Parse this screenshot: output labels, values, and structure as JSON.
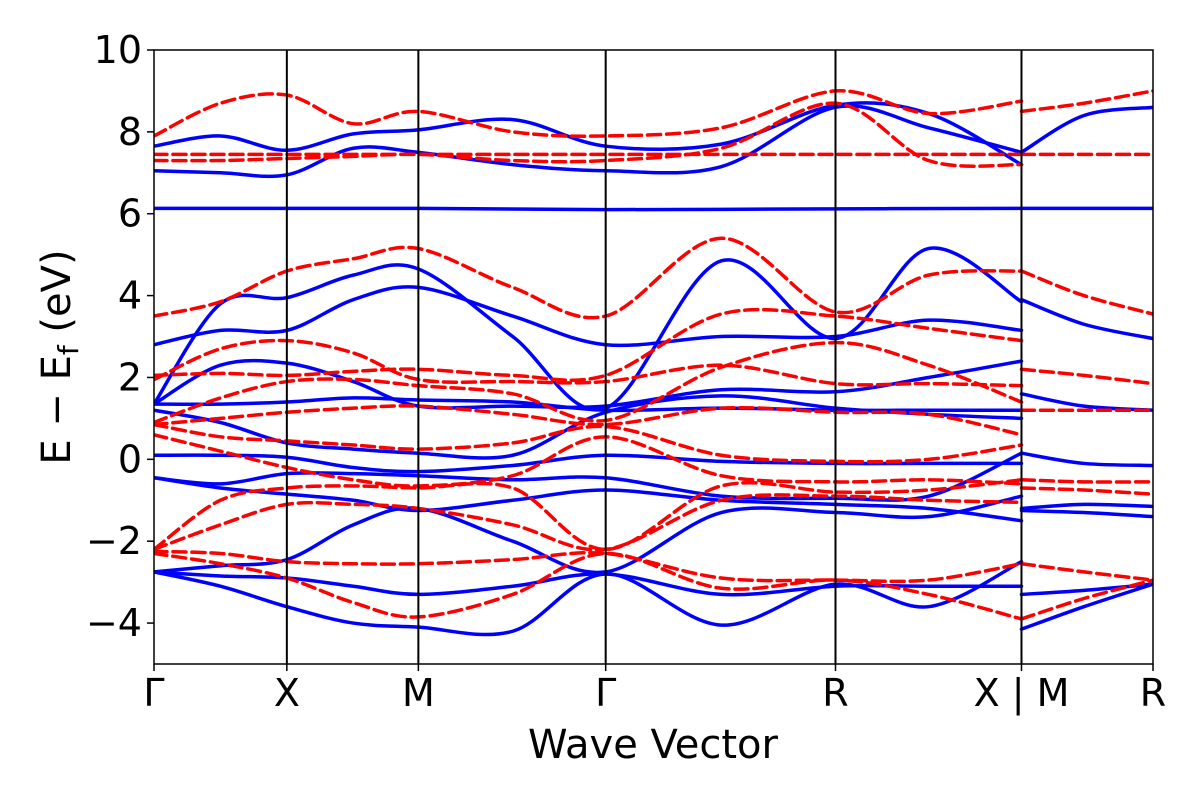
{
  "chart_data": {
    "type": "line",
    "title": "",
    "xlabel": "Wave Vector",
    "ylabel": "E − E_f (eV)",
    "ylabel_main": "E − E",
    "ylabel_sub": "f",
    "ylabel_tail": " (eV)",
    "ylim": [
      -5,
      10
    ],
    "yticks": [
      -4,
      -2,
      0,
      2,
      4,
      6,
      8,
      10
    ],
    "ytick_labels": [
      "−4",
      "−2",
      "0",
      "2",
      "4",
      "6",
      "8",
      "10"
    ],
    "xlim": [
      0,
      7.52
    ],
    "high_symmetry_points": [
      {
        "label": "Γ",
        "x": 0
      },
      {
        "label": "X",
        "x": 1.0
      },
      {
        "label": "M",
        "x": 1.99
      },
      {
        "label": "Γ",
        "x": 3.4
      },
      {
        "label": "R",
        "x": 5.13
      },
      {
        "label": "X | M",
        "x": 6.53
      },
      {
        "label": "R",
        "x": 7.52
      }
    ],
    "grid": false,
    "legend": false,
    "series": [
      {
        "style": "solid",
        "color": "#0000ff",
        "x": [
          0,
          1.0,
          1.99,
          3.4,
          5.13,
          6.53
        ],
        "y": [
          6.13,
          6.13,
          6.13,
          6.1,
          6.12,
          6.13
        ]
      },
      {
        "style": "solid",
        "color": "#0000ff",
        "x": [
          6.53,
          7.52
        ],
        "y": [
          6.13,
          6.13
        ]
      },
      {
        "style": "solid",
        "color": "#0000ff",
        "x": [
          0,
          0.5,
          1.0,
          1.5,
          1.99,
          2.7,
          3.4,
          4.27,
          5.13,
          5.83,
          6.53
        ],
        "y": [
          7.05,
          7.0,
          6.95,
          7.6,
          7.5,
          7.2,
          7.05,
          7.15,
          8.6,
          8.1,
          7.5
        ]
      },
      {
        "style": "solid",
        "color": "#0000ff",
        "x": [
          0,
          0.5,
          1.0,
          1.5,
          1.99,
          2.7,
          3.4,
          4.27,
          5.13,
          5.83,
          6.53
        ],
        "y": [
          7.65,
          7.9,
          7.55,
          7.95,
          8.05,
          8.3,
          7.65,
          7.7,
          8.65,
          8.45,
          7.2
        ]
      },
      {
        "style": "solid",
        "color": "#0000ff",
        "x": [
          0,
          0.5,
          1.0,
          1.5,
          1.99,
          2.7,
          3.4,
          4.27,
          5.13,
          5.83,
          6.53
        ],
        "y": [
          2.8,
          3.15,
          3.15,
          3.9,
          4.2,
          3.5,
          2.8,
          3.0,
          3.0,
          3.4,
          3.15
        ]
      },
      {
        "style": "solid",
        "color": "#0000ff",
        "x": [
          0,
          0.5,
          1.0,
          1.5,
          1.99,
          2.7,
          3.4,
          4.27,
          5.13,
          5.83,
          6.53
        ],
        "y": [
          1.35,
          3.8,
          3.95,
          4.5,
          4.65,
          3.0,
          1.25,
          4.85,
          2.95,
          5.15,
          3.85
        ]
      },
      {
        "style": "solid",
        "color": "#0000ff",
        "x": [
          0,
          0.5,
          1.0,
          1.5,
          1.99,
          2.7,
          3.4,
          4.27,
          5.13,
          5.83,
          6.53
        ],
        "y": [
          1.35,
          2.3,
          2.35,
          1.9,
          1.3,
          1.3,
          1.3,
          1.7,
          1.65,
          2.0,
          2.4
        ]
      },
      {
        "style": "solid",
        "color": "#0000ff",
        "x": [
          0,
          0.5,
          1.0,
          1.5,
          1.99,
          2.7,
          3.4,
          4.27,
          5.13,
          5.83,
          6.53
        ],
        "y": [
          1.35,
          1.35,
          1.4,
          1.5,
          1.45,
          1.4,
          1.2,
          1.25,
          1.2,
          1.2,
          1.2
        ]
      },
      {
        "style": "solid",
        "color": "#0000ff",
        "x": [
          0,
          0.5,
          1.0,
          1.5,
          1.99,
          2.7,
          3.4,
          4.27,
          5.13,
          5.83,
          6.53
        ],
        "y": [
          1.2,
          0.9,
          0.4,
          0.25,
          0.15,
          0.1,
          1.15,
          1.55,
          1.25,
          1.1,
          1.0
        ]
      },
      {
        "style": "solid",
        "color": "#0000ff",
        "x": [
          0,
          0.5,
          1.0,
          1.5,
          1.99,
          2.7,
          3.4,
          4.27,
          5.13,
          5.83,
          6.53
        ],
        "y": [
          0.1,
          0.1,
          0.05,
          -0.2,
          -0.3,
          -0.15,
          0.1,
          -0.05,
          -0.1,
          -0.1,
          -0.1
        ]
      },
      {
        "style": "solid",
        "color": "#0000ff",
        "x": [
          0,
          0.5,
          1.0,
          1.5,
          1.99,
          2.7,
          3.4,
          4.27,
          5.13,
          5.83,
          6.53
        ],
        "y": [
          -0.45,
          -0.6,
          -0.35,
          -0.35,
          -0.4,
          -0.5,
          -0.45,
          -0.9,
          -0.95,
          -0.9,
          0.15
        ]
      },
      {
        "style": "solid",
        "color": "#0000ff",
        "x": [
          0,
          0.5,
          1.0,
          1.5,
          1.99,
          2.7,
          3.4,
          4.27,
          5.13,
          5.83,
          6.53
        ],
        "y": [
          -0.45,
          -0.7,
          -0.85,
          -1.0,
          -1.25,
          -1.0,
          -0.75,
          -1.0,
          -1.1,
          -1.2,
          -1.5
        ]
      },
      {
        "style": "solid",
        "color": "#0000ff",
        "x": [
          0,
          0.5,
          1.0,
          1.5,
          1.99,
          2.7,
          3.4,
          4.27,
          5.13,
          5.83,
          6.53
        ],
        "y": [
          -2.75,
          -2.6,
          -2.45,
          -1.6,
          -1.2,
          -2.0,
          -2.75,
          -1.3,
          -1.3,
          -1.4,
          -0.9
        ]
      },
      {
        "style": "solid",
        "color": "#0000ff",
        "x": [
          0,
          0.5,
          1.0,
          1.5,
          1.99,
          2.7,
          3.4,
          4.27,
          5.13,
          5.83,
          6.53
        ],
        "y": [
          -2.75,
          -2.85,
          -2.9,
          -3.1,
          -3.3,
          -3.1,
          -2.8,
          -3.3,
          -3.1,
          -3.1,
          -3.1
        ]
      },
      {
        "style": "solid",
        "color": "#0000ff",
        "x": [
          0,
          0.5,
          1.0,
          1.5,
          1.99,
          2.7,
          3.4,
          4.27,
          5.13,
          5.83,
          6.53
        ],
        "y": [
          -2.75,
          -3.1,
          -3.6,
          -4.0,
          -4.1,
          -4.2,
          -2.8,
          -4.05,
          -3.05,
          -3.6,
          -2.5
        ]
      },
      {
        "style": "solid",
        "color": "#0000ff",
        "x": [
          6.53,
          7.0,
          7.52
        ],
        "y": [
          7.5,
          8.4,
          8.6
        ]
      },
      {
        "style": "solid",
        "color": "#0000ff",
        "x": [
          6.53,
          7.0,
          7.52
        ],
        "y": [
          3.9,
          3.3,
          2.95
        ]
      },
      {
        "style": "solid",
        "color": "#0000ff",
        "x": [
          6.53,
          7.0,
          7.52
        ],
        "y": [
          1.6,
          1.3,
          1.2
        ]
      },
      {
        "style": "solid",
        "color": "#0000ff",
        "x": [
          6.53,
          7.0,
          7.52
        ],
        "y": [
          0.15,
          -0.1,
          -0.15
        ]
      },
      {
        "style": "solid",
        "color": "#0000ff",
        "x": [
          6.53,
          7.0,
          7.52
        ],
        "y": [
          -1.2,
          -1.1,
          -1.15
        ]
      },
      {
        "style": "solid",
        "color": "#0000ff",
        "x": [
          6.53,
          7.0,
          7.52
        ],
        "y": [
          -1.25,
          -1.3,
          -1.4
        ]
      },
      {
        "style": "solid",
        "color": "#0000ff",
        "x": [
          6.53,
          7.0,
          7.52
        ],
        "y": [
          -3.3,
          -3.2,
          -3.05
        ]
      },
      {
        "style": "solid",
        "color": "#0000ff",
        "x": [
          6.53,
          7.0,
          7.52
        ],
        "y": [
          -4.15,
          -3.6,
          -3.05
        ]
      },
      {
        "style": "dashed",
        "color": "#ff0000",
        "x": [
          0,
          1.0,
          1.99,
          3.4,
          5.13,
          6.53
        ],
        "y": [
          7.45,
          7.45,
          7.45,
          7.45,
          7.45,
          7.45
        ]
      },
      {
        "style": "dashed",
        "color": "#ff0000",
        "x": [
          6.53,
          7.52
        ],
        "y": [
          7.45,
          7.45
        ]
      },
      {
        "style": "dashed",
        "color": "#ff0000",
        "x": [
          0,
          0.5,
          1.0,
          1.5,
          1.99,
          2.7,
          3.4,
          4.27,
          5.13,
          5.83,
          6.53
        ],
        "y": [
          7.3,
          7.3,
          7.35,
          7.4,
          7.45,
          7.3,
          7.3,
          7.6,
          8.7,
          7.3,
          7.2
        ]
      },
      {
        "style": "dashed",
        "color": "#ff0000",
        "x": [
          0,
          0.5,
          1.0,
          1.5,
          1.99,
          2.7,
          3.4,
          4.27,
          5.13,
          5.83,
          6.53
        ],
        "y": [
          7.9,
          8.7,
          8.9,
          8.2,
          8.5,
          8.0,
          7.9,
          8.1,
          9.0,
          8.45,
          8.75
        ]
      },
      {
        "style": "dashed",
        "color": "#ff0000",
        "x": [
          0,
          0.5,
          1.0,
          1.5,
          1.99,
          2.7,
          3.4,
          4.27,
          5.13,
          5.83,
          6.53
        ],
        "y": [
          3.5,
          3.85,
          4.6,
          4.9,
          5.15,
          4.2,
          3.5,
          5.4,
          3.6,
          4.5,
          4.6
        ]
      },
      {
        "style": "dashed",
        "color": "#ff0000",
        "x": [
          0,
          0.5,
          1.0,
          1.5,
          1.99,
          2.7,
          3.4,
          4.27,
          5.13,
          5.83,
          6.53
        ],
        "y": [
          2.05,
          2.1,
          2.05,
          2.15,
          2.2,
          2.05,
          2.05,
          3.55,
          3.5,
          3.2,
          2.9
        ]
      },
      {
        "style": "dashed",
        "color": "#ff0000",
        "x": [
          0,
          0.5,
          1.0,
          1.5,
          1.99,
          2.7,
          3.4,
          4.27,
          5.13,
          5.83,
          6.53
        ],
        "y": [
          1.95,
          2.7,
          2.9,
          2.6,
          1.95,
          1.9,
          1.9,
          2.3,
          1.85,
          1.85,
          1.8
        ]
      },
      {
        "style": "dashed",
        "color": "#ff0000",
        "x": [
          0,
          0.5,
          1.0,
          1.5,
          1.99,
          2.7,
          3.4,
          4.27,
          5.13,
          5.83,
          6.53
        ],
        "y": [
          0.9,
          1.5,
          1.9,
          1.95,
          1.8,
          1.6,
          0.95,
          2.25,
          2.85,
          2.3,
          1.4
        ]
      },
      {
        "style": "dashed",
        "color": "#ff0000",
        "x": [
          0,
          0.5,
          1.0,
          1.5,
          1.99,
          2.7,
          3.4,
          4.27,
          5.13,
          5.83,
          6.53
        ],
        "y": [
          0.85,
          1.0,
          1.15,
          1.25,
          1.3,
          1.1,
          0.85,
          1.25,
          1.15,
          1.1,
          0.6
        ]
      },
      {
        "style": "dashed",
        "color": "#ff0000",
        "x": [
          0,
          0.5,
          1.0,
          1.5,
          1.99,
          2.7,
          3.4,
          4.27,
          5.13,
          5.83,
          6.53
        ],
        "y": [
          0.85,
          0.55,
          0.45,
          0.35,
          0.25,
          0.4,
          0.8,
          0.1,
          -0.05,
          0.0,
          0.35
        ]
      },
      {
        "style": "dashed",
        "color": "#ff0000",
        "x": [
          0,
          0.5,
          1.0,
          1.5,
          1.99,
          2.7,
          3.4,
          4.27,
          5.13,
          5.83,
          6.53
        ],
        "y": [
          0.6,
          0.2,
          -0.2,
          -0.5,
          -0.65,
          -0.4,
          0.55,
          -0.4,
          -0.55,
          -0.5,
          -0.6
        ]
      },
      {
        "style": "dashed",
        "color": "#ff0000",
        "x": [
          0,
          0.5,
          1.0,
          1.5,
          1.99,
          2.7,
          3.4,
          4.27,
          5.13,
          5.83,
          6.53
        ],
        "y": [
          -2.2,
          -1.0,
          -0.7,
          -0.65,
          -0.7,
          -0.7,
          -2.2,
          -0.65,
          -0.8,
          -0.75,
          -0.5
        ]
      },
      {
        "style": "dashed",
        "color": "#ff0000",
        "x": [
          0,
          0.5,
          1.0,
          1.5,
          1.99,
          2.7,
          3.4,
          4.27,
          5.13,
          5.83,
          6.53
        ],
        "y": [
          -2.2,
          -1.6,
          -1.1,
          -1.1,
          -1.2,
          -1.6,
          -2.2,
          -1.0,
          -0.9,
          -1.0,
          -1.05
        ]
      },
      {
        "style": "dashed",
        "color": "#ff0000",
        "x": [
          0,
          0.5,
          1.0,
          1.5,
          1.99,
          2.7,
          3.4,
          4.27,
          5.13,
          5.83,
          6.53
        ],
        "y": [
          -2.25,
          -2.3,
          -2.5,
          -2.55,
          -2.55,
          -2.45,
          -2.3,
          -2.9,
          -2.95,
          -2.95,
          -2.55
        ]
      },
      {
        "style": "dashed",
        "color": "#ff0000",
        "x": [
          0,
          0.5,
          1.0,
          1.5,
          1.99,
          2.7,
          3.4,
          4.27,
          5.13,
          5.83,
          6.53
        ],
        "y": [
          -2.3,
          -2.55,
          -2.9,
          -3.5,
          -3.85,
          -3.3,
          -2.3,
          -3.15,
          -2.95,
          -3.3,
          -3.9
        ]
      },
      {
        "style": "dashed",
        "color": "#ff0000",
        "x": [
          6.53,
          7.0,
          7.52
        ],
        "y": [
          8.5,
          8.7,
          9.0
        ]
      },
      {
        "style": "dashed",
        "color": "#ff0000",
        "x": [
          6.53,
          7.0,
          7.52
        ],
        "y": [
          4.6,
          4.0,
          3.55
        ]
      },
      {
        "style": "dashed",
        "color": "#ff0000",
        "x": [
          6.53,
          7.0,
          7.52
        ],
        "y": [
          2.2,
          2.05,
          1.85
        ]
      },
      {
        "style": "dashed",
        "color": "#ff0000",
        "x": [
          6.53,
          7.0,
          7.52
        ],
        "y": [
          1.2,
          1.2,
          1.2
        ]
      },
      {
        "style": "dashed",
        "color": "#ff0000",
        "x": [
          6.53,
          7.0,
          7.52
        ],
        "y": [
          -0.5,
          -0.55,
          -0.55
        ]
      },
      {
        "style": "dashed",
        "color": "#ff0000",
        "x": [
          6.53,
          7.0,
          7.52
        ],
        "y": [
          -0.7,
          -0.75,
          -0.85
        ]
      },
      {
        "style": "dashed",
        "color": "#ff0000",
        "x": [
          6.53,
          7.0,
          7.52
        ],
        "y": [
          -2.55,
          -2.75,
          -2.95
        ]
      },
      {
        "style": "dashed",
        "color": "#ff0000",
        "x": [
          6.53,
          7.0,
          7.52
        ],
        "y": [
          -3.9,
          -3.4,
          -2.95
        ]
      }
    ]
  }
}
